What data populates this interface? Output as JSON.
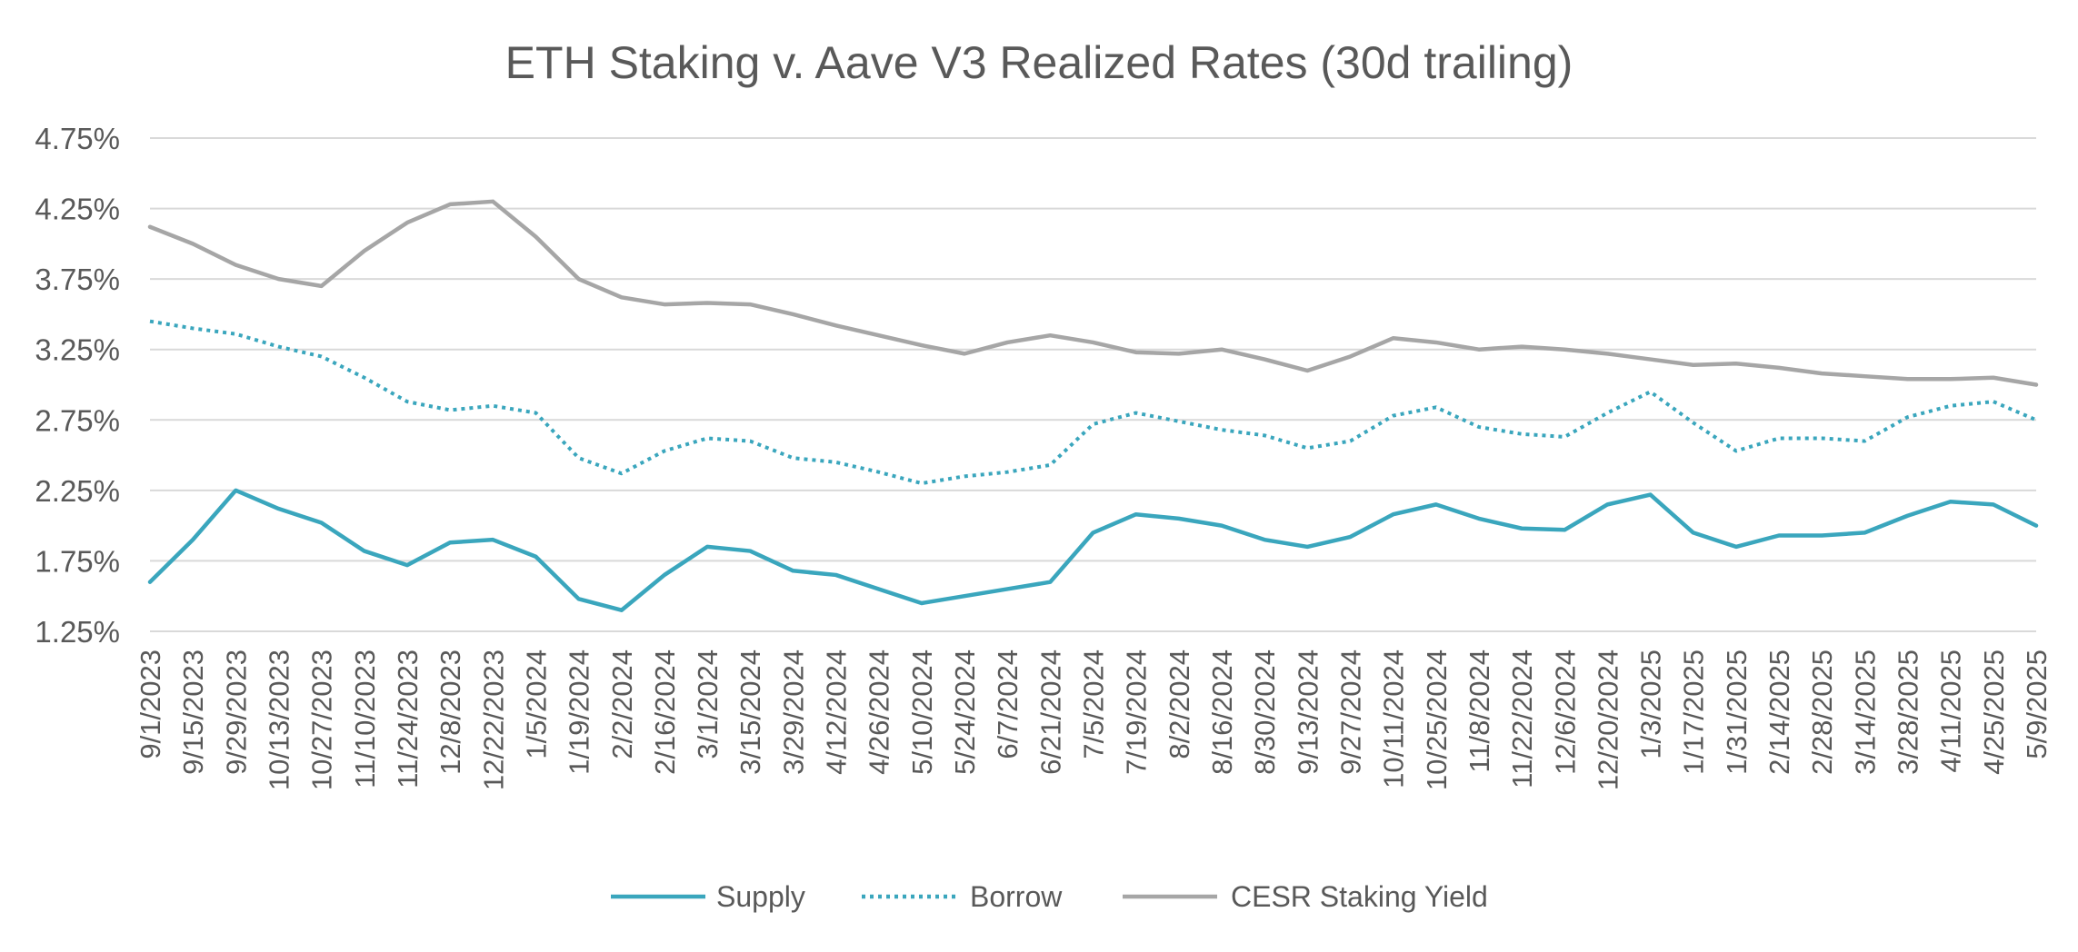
{
  "chart_data": {
    "type": "line",
    "title": "ETH Staking v. Aave V3 Realized Rates (30d trailing)",
    "xlabel": "",
    "ylabel": "",
    "ylim": [
      1.25,
      4.75
    ],
    "yticks": [
      "4.75%",
      "4.25%",
      "3.75%",
      "3.25%",
      "2.75%",
      "2.25%",
      "1.75%",
      "1.25%"
    ],
    "ytick_values": [
      4.75,
      4.25,
      3.75,
      3.25,
      2.75,
      2.25,
      1.75,
      1.25
    ],
    "grid": true,
    "legend_position": "bottom",
    "x": [
      "9/1/2023",
      "9/15/2023",
      "9/29/2023",
      "10/13/2023",
      "10/27/2023",
      "11/10/2023",
      "11/24/2023",
      "12/8/2023",
      "12/22/2023",
      "1/5/2024",
      "1/19/2024",
      "2/2/2024",
      "2/16/2024",
      "3/1/2024",
      "3/15/2024",
      "3/29/2024",
      "4/12/2024",
      "4/26/2024",
      "5/10/2024",
      "5/24/2024",
      "6/7/2024",
      "6/21/2024",
      "7/5/2024",
      "7/19/2024",
      "8/2/2024",
      "8/16/2024",
      "8/30/2024",
      "9/13/2024",
      "9/27/2024",
      "10/11/2024",
      "10/25/2024",
      "11/8/2024",
      "11/22/2024",
      "12/6/2024",
      "12/20/2024",
      "1/3/2025",
      "1/17/2025",
      "1/31/2025",
      "2/14/2025",
      "2/28/2025",
      "3/14/2025",
      "3/28/2025",
      "4/11/2025",
      "4/25/2025",
      "5/9/2025"
    ],
    "series": [
      {
        "name": "Supply",
        "style": "solid",
        "color": "#3aa6bd",
        "values": [
          1.6,
          1.9,
          2.25,
          2.12,
          2.02,
          1.82,
          1.72,
          1.88,
          1.9,
          1.78,
          1.48,
          1.4,
          1.65,
          1.85,
          1.82,
          1.68,
          1.65,
          1.55,
          1.45,
          1.5,
          1.55,
          1.6,
          1.95,
          2.08,
          2.05,
          2.0,
          1.9,
          1.85,
          1.92,
          2.08,
          2.15,
          2.05,
          1.98,
          1.97,
          2.15,
          2.22,
          1.95,
          1.85,
          1.93,
          1.93,
          1.95,
          2.07,
          2.17,
          2.15,
          2.0
        ]
      },
      {
        "name": "Borrow",
        "style": "dotted",
        "color": "#3aa6bd",
        "values": [
          3.45,
          3.4,
          3.36,
          3.27,
          3.2,
          3.05,
          2.88,
          2.82,
          2.85,
          2.8,
          2.48,
          2.37,
          2.53,
          2.62,
          2.6,
          2.48,
          2.45,
          2.38,
          2.3,
          2.35,
          2.38,
          2.43,
          2.72,
          2.8,
          2.74,
          2.68,
          2.64,
          2.55,
          2.6,
          2.78,
          2.84,
          2.7,
          2.65,
          2.63,
          2.8,
          2.95,
          2.73,
          2.53,
          2.62,
          2.62,
          2.6,
          2.77,
          2.85,
          2.88,
          2.75
        ]
      },
      {
        "name": "CESR Staking Yield",
        "style": "solid",
        "color": "#a6a6a6",
        "values": [
          4.12,
          4.0,
          3.85,
          3.75,
          3.7,
          3.95,
          4.15,
          4.28,
          4.3,
          4.05,
          3.75,
          3.62,
          3.57,
          3.58,
          3.57,
          3.5,
          3.42,
          3.35,
          3.28,
          3.22,
          3.3,
          3.35,
          3.3,
          3.23,
          3.22,
          3.25,
          3.18,
          3.1,
          3.2,
          3.33,
          3.3,
          3.25,
          3.27,
          3.25,
          3.22,
          3.18,
          3.14,
          3.15,
          3.12,
          3.08,
          3.06,
          3.04,
          3.04,
          3.05,
          3.0
        ]
      }
    ]
  }
}
